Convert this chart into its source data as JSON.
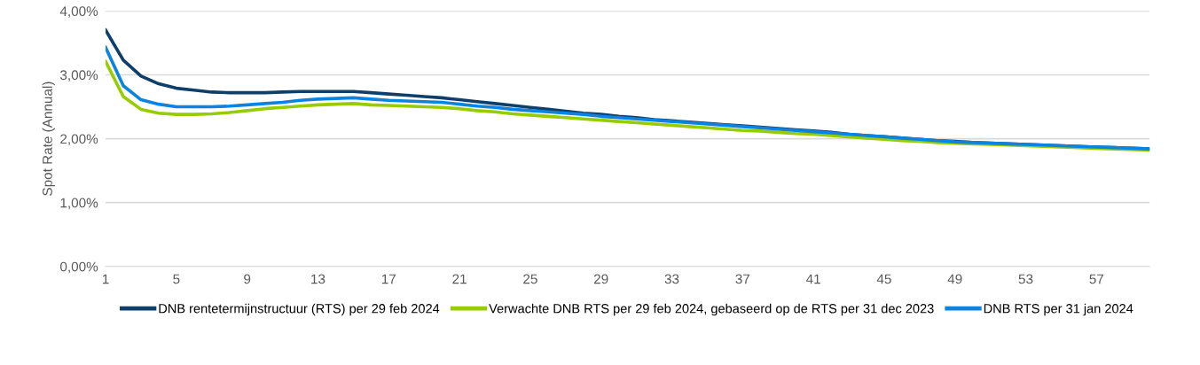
{
  "chart_data": {
    "type": "line",
    "ylabel": "Spot Rate (Annual)",
    "categories": [
      "1",
      null,
      null,
      null,
      "5",
      null,
      null,
      null,
      "9",
      null,
      null,
      null,
      "13",
      null,
      null,
      null,
      "17",
      null,
      null,
      null,
      "21",
      null,
      null,
      null,
      "25",
      null,
      null,
      null,
      "29",
      null,
      null,
      null,
      "33",
      null,
      null,
      null,
      "37",
      null,
      null,
      null,
      "41",
      null,
      null,
      null,
      "45",
      null,
      null,
      null,
      "49",
      null,
      null,
      null,
      "53",
      null,
      null,
      null,
      "57",
      null,
      null,
      null
    ],
    "ylim": [
      0,
      4
    ],
    "yticks": [
      {
        "value": 0,
        "label": "0,00%"
      },
      {
        "value": 1,
        "label": "1,00%"
      },
      {
        "value": 2,
        "label": "2,00%"
      },
      {
        "value": 3,
        "label": "3,00%"
      },
      {
        "value": 4,
        "label": "4,00%"
      }
    ],
    "grid": "y",
    "legend": "bottom",
    "marker": "none",
    "line_style": "solid",
    "series": [
      {
        "name": "DNB rentetermijnstructuur (RTS) per 29 feb 2024",
        "color": "#0e3f6b",
        "values": [
          3.7,
          3.23,
          2.98,
          2.86,
          2.79,
          2.76,
          2.73,
          2.72,
          2.72,
          2.72,
          2.73,
          2.74,
          2.74,
          2.74,
          2.74,
          2.72,
          2.7,
          2.68,
          2.66,
          2.64,
          2.61,
          2.58,
          2.55,
          2.52,
          2.49,
          2.46,
          2.43,
          2.4,
          2.38,
          2.35,
          2.33,
          2.3,
          2.28,
          2.26,
          2.24,
          2.22,
          2.2,
          2.18,
          2.16,
          2.14,
          2.12,
          2.1,
          2.07,
          2.05,
          2.03,
          2.01,
          1.99,
          1.97,
          1.96,
          1.94,
          1.93,
          1.92,
          1.91,
          1.9,
          1.89,
          1.88,
          1.87,
          1.86,
          1.85,
          1.84
        ]
      },
      {
        "name": "Verwachte DNB RTS per 29 feb 2024, gebaseerd op de RTS per 31 dec 2023",
        "color": "#96cc00",
        "values": [
          3.21,
          2.66,
          2.46,
          2.4,
          2.38,
          2.38,
          2.39,
          2.41,
          2.44,
          2.47,
          2.49,
          2.51,
          2.53,
          2.54,
          2.55,
          2.53,
          2.52,
          2.51,
          2.5,
          2.49,
          2.47,
          2.44,
          2.42,
          2.39,
          2.37,
          2.35,
          2.33,
          2.31,
          2.29,
          2.27,
          2.25,
          2.23,
          2.21,
          2.19,
          2.17,
          2.15,
          2.13,
          2.12,
          2.1,
          2.08,
          2.07,
          2.05,
          2.03,
          2.01,
          1.99,
          1.97,
          1.96,
          1.94,
          1.93,
          1.92,
          1.91,
          1.9,
          1.89,
          1.88,
          1.87,
          1.86,
          1.85,
          1.84,
          1.83,
          1.82
        ]
      },
      {
        "name": "DNB RTS per 31 jan 2024",
        "color": "#0a84e0",
        "values": [
          3.43,
          2.83,
          2.61,
          2.54,
          2.5,
          2.5,
          2.5,
          2.51,
          2.53,
          2.55,
          2.57,
          2.6,
          2.62,
          2.63,
          2.64,
          2.62,
          2.6,
          2.59,
          2.58,
          2.57,
          2.54,
          2.51,
          2.49,
          2.46,
          2.44,
          2.42,
          2.4,
          2.38,
          2.35,
          2.33,
          2.31,
          2.29,
          2.27,
          2.25,
          2.23,
          2.21,
          2.19,
          2.17,
          2.15,
          2.13,
          2.11,
          2.09,
          2.07,
          2.05,
          2.03,
          2.01,
          1.99,
          1.97,
          1.95,
          1.94,
          1.93,
          1.92,
          1.91,
          1.9,
          1.89,
          1.88,
          1.87,
          1.86,
          1.85,
          1.84
        ]
      }
    ]
  }
}
